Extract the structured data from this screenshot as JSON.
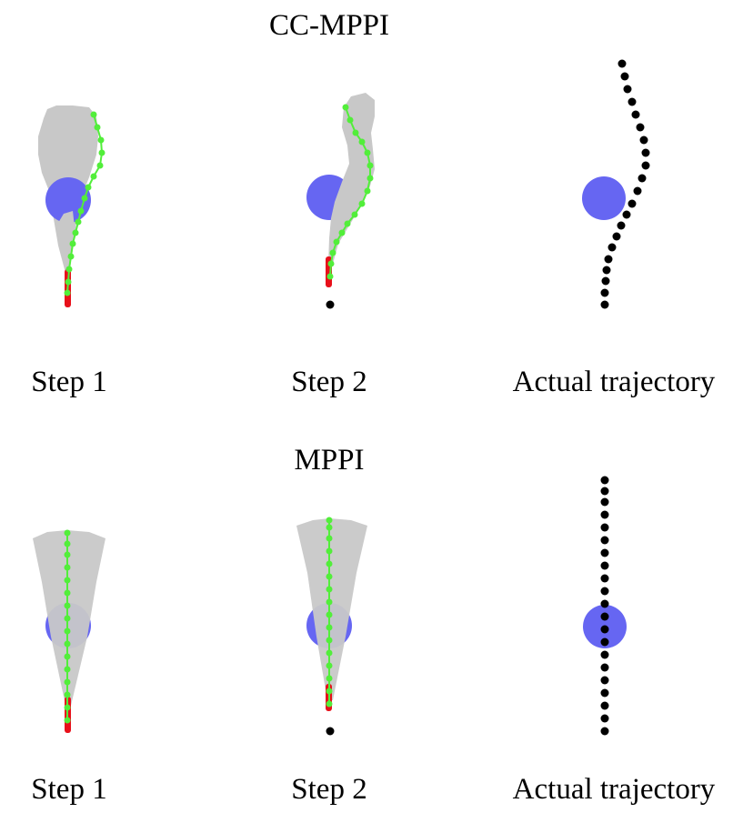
{
  "colors": {
    "background": "#ffffff",
    "sample_trajectories": "#c8c8c8",
    "obstacle": "#6666f2",
    "planned_path": "#52ee3a",
    "past_path": "#e8101a",
    "actual_path": "#000000"
  },
  "sections": [
    {
      "title": "CC-MPPI",
      "panels": [
        {
          "kind": "step",
          "caption": "Step 1"
        },
        {
          "kind": "step",
          "caption": "Step 2"
        },
        {
          "kind": "actual",
          "caption": "Actual trajectory"
        }
      ]
    },
    {
      "title": "MPPI",
      "panels": [
        {
          "kind": "step",
          "caption": "Step 1"
        },
        {
          "kind": "step",
          "caption": "Step 2"
        },
        {
          "kind": "actual",
          "caption": "Actual trajectory"
        }
      ]
    }
  ]
}
